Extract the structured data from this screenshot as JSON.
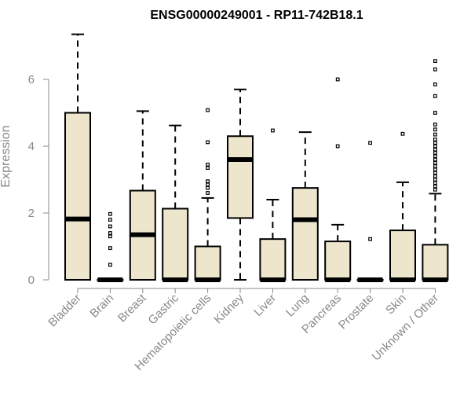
{
  "chart_data": {
    "type": "box",
    "title": "ENSG00000249001 - RP11-742B18.1",
    "xlabel": "",
    "ylabel": "Expression",
    "ylim": [
      0,
      7.4
    ],
    "yticks": [
      0,
      2,
      4,
      6
    ],
    "categories": [
      "Bladder",
      "Brain",
      "Breast",
      "Gastric",
      "Hematopoietic cells",
      "Kidney",
      "Liver",
      "Lung",
      "Pancreas",
      "Prostate",
      "Skin",
      "Unknown / Other"
    ],
    "boxes": [
      {
        "name": "Bladder",
        "whislo": 0,
        "q1": 0,
        "med": 1.82,
        "q3": 5.0,
        "whishi": 7.35,
        "fliers": []
      },
      {
        "name": "Brain",
        "whislo": 0,
        "q1": 0,
        "med": 0,
        "q3": 0,
        "whishi": 0,
        "fliers": [
          0.45,
          0.95,
          1.3,
          1.4,
          1.6,
          1.8,
          1.97
        ]
      },
      {
        "name": "Breast",
        "whislo": 0,
        "q1": 0,
        "med": 1.35,
        "q3": 2.67,
        "whishi": 5.05,
        "fliers": []
      },
      {
        "name": "Gastric",
        "whislo": 0,
        "q1": 0,
        "med": 0,
        "q3": 2.13,
        "whishi": 4.62,
        "fliers": []
      },
      {
        "name": "Hematopoietic cells",
        "whislo": 0,
        "q1": 0,
        "med": 0,
        "q3": 1.0,
        "whishi": 2.45,
        "fliers": [
          2.6,
          2.75,
          2.85,
          2.95,
          3.35,
          3.45,
          4.12,
          5.08
        ]
      },
      {
        "name": "Kidney",
        "whislo": 0,
        "q1": 1.85,
        "med": 3.6,
        "q3": 4.3,
        "whishi": 5.7,
        "fliers": []
      },
      {
        "name": "Liver",
        "whislo": 0,
        "q1": 0,
        "med": 0,
        "q3": 1.22,
        "whishi": 2.4,
        "fliers": [
          4.47
        ]
      },
      {
        "name": "Lung",
        "whislo": 0,
        "q1": 0,
        "med": 1.8,
        "q3": 2.75,
        "whishi": 4.42,
        "fliers": []
      },
      {
        "name": "Pancreas",
        "whislo": 0,
        "q1": 0,
        "med": 0,
        "q3": 1.15,
        "whishi": 1.65,
        "fliers": [
          4.0,
          6.0
        ]
      },
      {
        "name": "Prostate",
        "whislo": 0,
        "q1": 0,
        "med": 0,
        "q3": 0,
        "whishi": 0,
        "fliers": [
          1.22,
          4.1
        ]
      },
      {
        "name": "Skin",
        "whislo": 0,
        "q1": 0,
        "med": 0,
        "q3": 1.48,
        "whishi": 2.92,
        "fliers": [
          4.37
        ]
      },
      {
        "name": "Unknown / Other",
        "whislo": 0,
        "q1": 0,
        "med": 0,
        "q3": 1.05,
        "whishi": 2.58,
        "fliers": [
          2.7,
          2.8,
          2.9,
          3.0,
          3.1,
          3.2,
          3.3,
          3.4,
          3.5,
          3.6,
          3.7,
          3.8,
          3.9,
          4.0,
          4.1,
          4.2,
          4.35,
          4.5,
          4.65,
          5.0,
          5.5,
          5.85,
          6.3,
          6.55
        ]
      }
    ],
    "colors": {
      "box_fill": "#EDE6CC",
      "axis": "#888888",
      "ink": "#000000"
    }
  }
}
